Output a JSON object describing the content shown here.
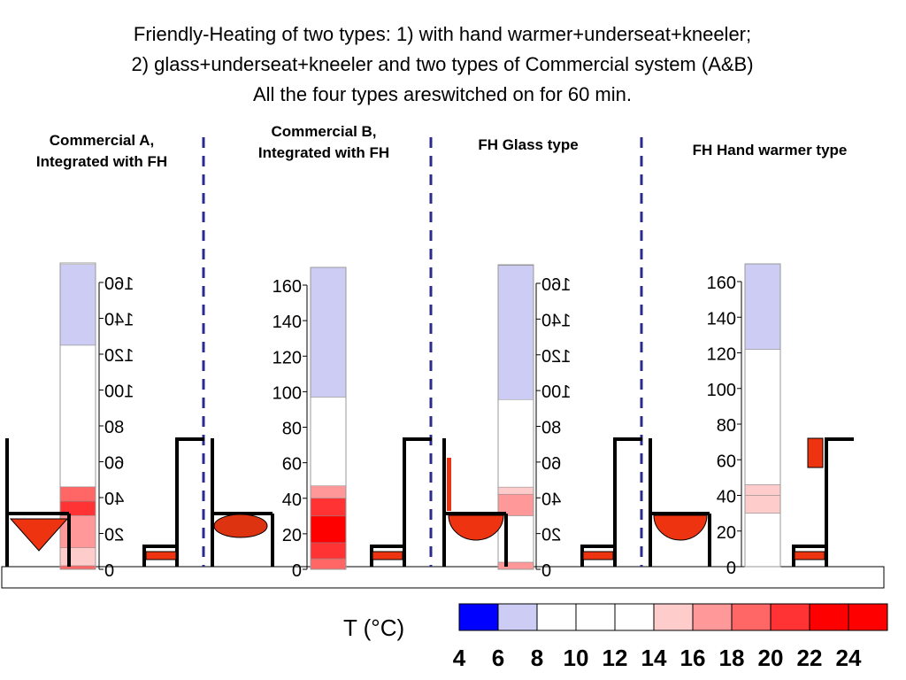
{
  "title_lines": [
    "Friendly-Heating of two types: 1) with hand warmer+underseat+kneeler;",
    "2) glass+underseat+kneeler and two types of Commercial system (A&B)",
    "All the four types areswitched on  for 60 min."
  ],
  "panels": [
    {
      "title": [
        "Commercial A,",
        "Integrated with FH"
      ],
      "scale_mirrored": true,
      "ticks": [
        "160",
        "140",
        "120",
        "100",
        "80",
        "60",
        "40",
        "20",
        "0"
      ],
      "column_layers": [
        {
          "from": 0,
          "to": 2,
          "color": "#ff6666"
        },
        {
          "from": 2,
          "to": 12,
          "color": "#ffcccc"
        },
        {
          "from": 12,
          "to": 30,
          "color": "#ff9999"
        },
        {
          "from": 30,
          "to": 38,
          "color": "#ff3333"
        },
        {
          "from": 38,
          "to": 46,
          "color": "#ff6666"
        },
        {
          "from": 46,
          "to": 125,
          "color": "#ffffff"
        },
        {
          "from": 125,
          "to": 170,
          "color": "#ccccf5"
        }
      ]
    },
    {
      "title": [
        "Commercial B,",
        "Integrated with FH"
      ],
      "scale_mirrored": false,
      "ticks": [
        "160",
        "140",
        "120",
        "100",
        "80",
        "60",
        "40",
        "20",
        "0"
      ],
      "column_layers": [
        {
          "from": 0,
          "to": 6,
          "color": "#ff6666"
        },
        {
          "from": 6,
          "to": 15,
          "color": "#ff3333"
        },
        {
          "from": 15,
          "to": 30,
          "color": "#ff0000"
        },
        {
          "from": 30,
          "to": 40,
          "color": "#ff3333"
        },
        {
          "from": 40,
          "to": 47,
          "color": "#ff9999"
        },
        {
          "from": 47,
          "to": 97,
          "color": "#ffffff"
        },
        {
          "from": 97,
          "to": 170,
          "color": "#ccccf5"
        }
      ]
    },
    {
      "title": [
        "FH Glass type"
      ],
      "scale_mirrored": true,
      "ticks": [
        "160",
        "140",
        "120",
        "100",
        "80",
        "60",
        "40",
        "20",
        "0"
      ],
      "column_layers": [
        {
          "from": 0,
          "to": 4,
          "color": "#ff9999"
        },
        {
          "from": 4,
          "to": 30,
          "color": "#ffffff"
        },
        {
          "from": 30,
          "to": 42,
          "color": "#ff9999"
        },
        {
          "from": 42,
          "to": 46,
          "color": "#ffcccc"
        },
        {
          "from": 46,
          "to": 95,
          "color": "#ffffff"
        },
        {
          "from": 95,
          "to": 170,
          "color": "#ccccf5"
        }
      ]
    },
    {
      "title": [
        "FH Hand warmer type"
      ],
      "scale_mirrored": false,
      "ticks": [
        "160",
        "140",
        "120",
        "100",
        "80",
        "60",
        "40",
        "20",
        "0"
      ],
      "column_layers": [
        {
          "from": 0,
          "to": 30,
          "color": "#ffffff"
        },
        {
          "from": 30,
          "to": 40,
          "color": "#ffcccc"
        },
        {
          "from": 40,
          "to": 46,
          "color": "#ffcccc"
        },
        {
          "from": 46,
          "to": 122,
          "color": "#ffffff"
        },
        {
          "from": 122,
          "to": 170,
          "color": "#ccccf5"
        }
      ]
    }
  ],
  "legend": {
    "label": "T (°C)",
    "tick_labels": [
      "4",
      "6",
      "8",
      "10",
      "12",
      "14",
      "16",
      "18",
      "20",
      "22",
      "24"
    ],
    "colors": [
      "#0000ff",
      "#ccccf5",
      "#ffffff",
      "#ffffff",
      "#ffffff",
      "#ffcccc",
      "#ff9999",
      "#ff6666",
      "#ff3333",
      "#ff0000",
      "#ff0000"
    ]
  }
}
